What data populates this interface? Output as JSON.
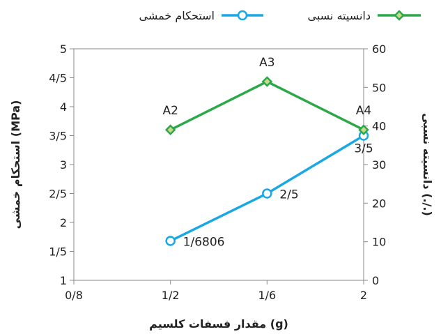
{
  "chart_data": {
    "type": "line",
    "title": "",
    "xlabel": "مقدار فسفات کلسیم (g)",
    "x_ticks": [
      "0/8",
      "1/2",
      "1/6",
      "2"
    ],
    "x_values": [
      0.8,
      1.2,
      1.6,
      2.0
    ],
    "xlim": [
      0.8,
      2.0
    ],
    "left_axis": {
      "label": "استحکام خمشی (MPa)",
      "ylim": [
        1,
        5
      ],
      "ticks": [
        "1",
        "1/5",
        "2",
        "2/5",
        "3",
        "3/5",
        "4",
        "4/5",
        "5"
      ]
    },
    "right_axis": {
      "label": "دانسیته نسبی (./.)",
      "ylim": [
        0,
        60
      ],
      "ticks": [
        "0",
        "10",
        "20",
        "30",
        "40",
        "50",
        "60"
      ]
    },
    "series": [
      {
        "name": "استحکام خمشی",
        "axis": "left",
        "color": "#1aa7e6",
        "marker": "circle",
        "x": [
          1.2,
          1.6,
          2.0
        ],
        "y": [
          1.6806,
          2.5,
          3.5
        ],
        "labels": [
          "1/6806",
          "2/5",
          "3/5"
        ]
      },
      {
        "name": "دانسیته نسبی",
        "axis": "right",
        "color": "#2aa84a",
        "marker": "diamond",
        "x": [
          1.2,
          1.6,
          2.0
        ],
        "y": [
          39,
          51.5,
          39
        ],
        "labels": [
          "A2",
          "A3",
          "A4"
        ]
      }
    ],
    "legend": "top",
    "grid": false
  }
}
